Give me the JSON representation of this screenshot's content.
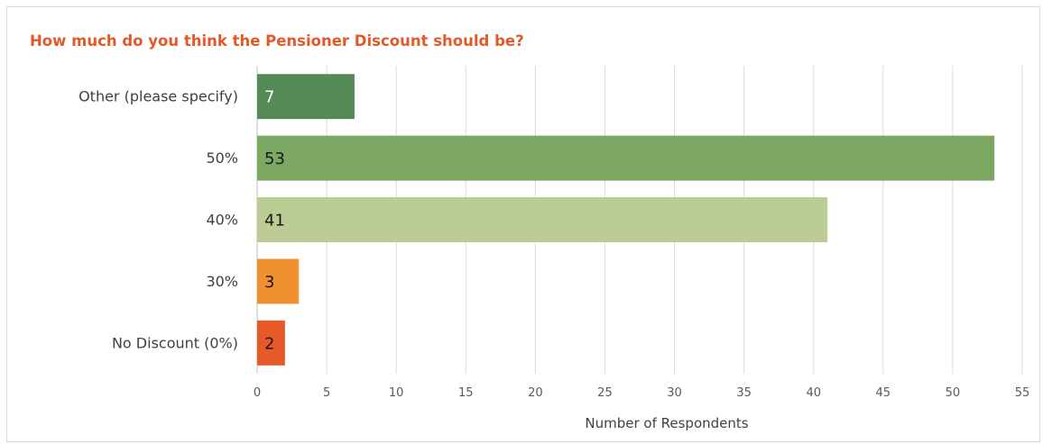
{
  "chart_data": {
    "type": "bar",
    "orientation": "horizontal",
    "title": "How much do you think the Pensioner Discount should be?",
    "xlabel": "Number of Respondents",
    "ylabel": "",
    "categories": [
      "Other (please specify)",
      "50%",
      "40%",
      "30%",
      "No Discount (0%)"
    ],
    "values": [
      7,
      53,
      41,
      3,
      2
    ],
    "colors": [
      "#548b54",
      "#7da863",
      "#bccd94",
      "#f09030",
      "#e65a2a"
    ],
    "label_colors": [
      "#ffffff",
      "#1a1a1a",
      "#1a1a1a",
      "#1a1a1a",
      "#1a1a1a"
    ],
    "xlim": [
      0,
      55
    ],
    "xticks": [
      0,
      5,
      10,
      15,
      20,
      25,
      30,
      35,
      40,
      45,
      50,
      55
    ],
    "grid": true,
    "legend": "none"
  }
}
